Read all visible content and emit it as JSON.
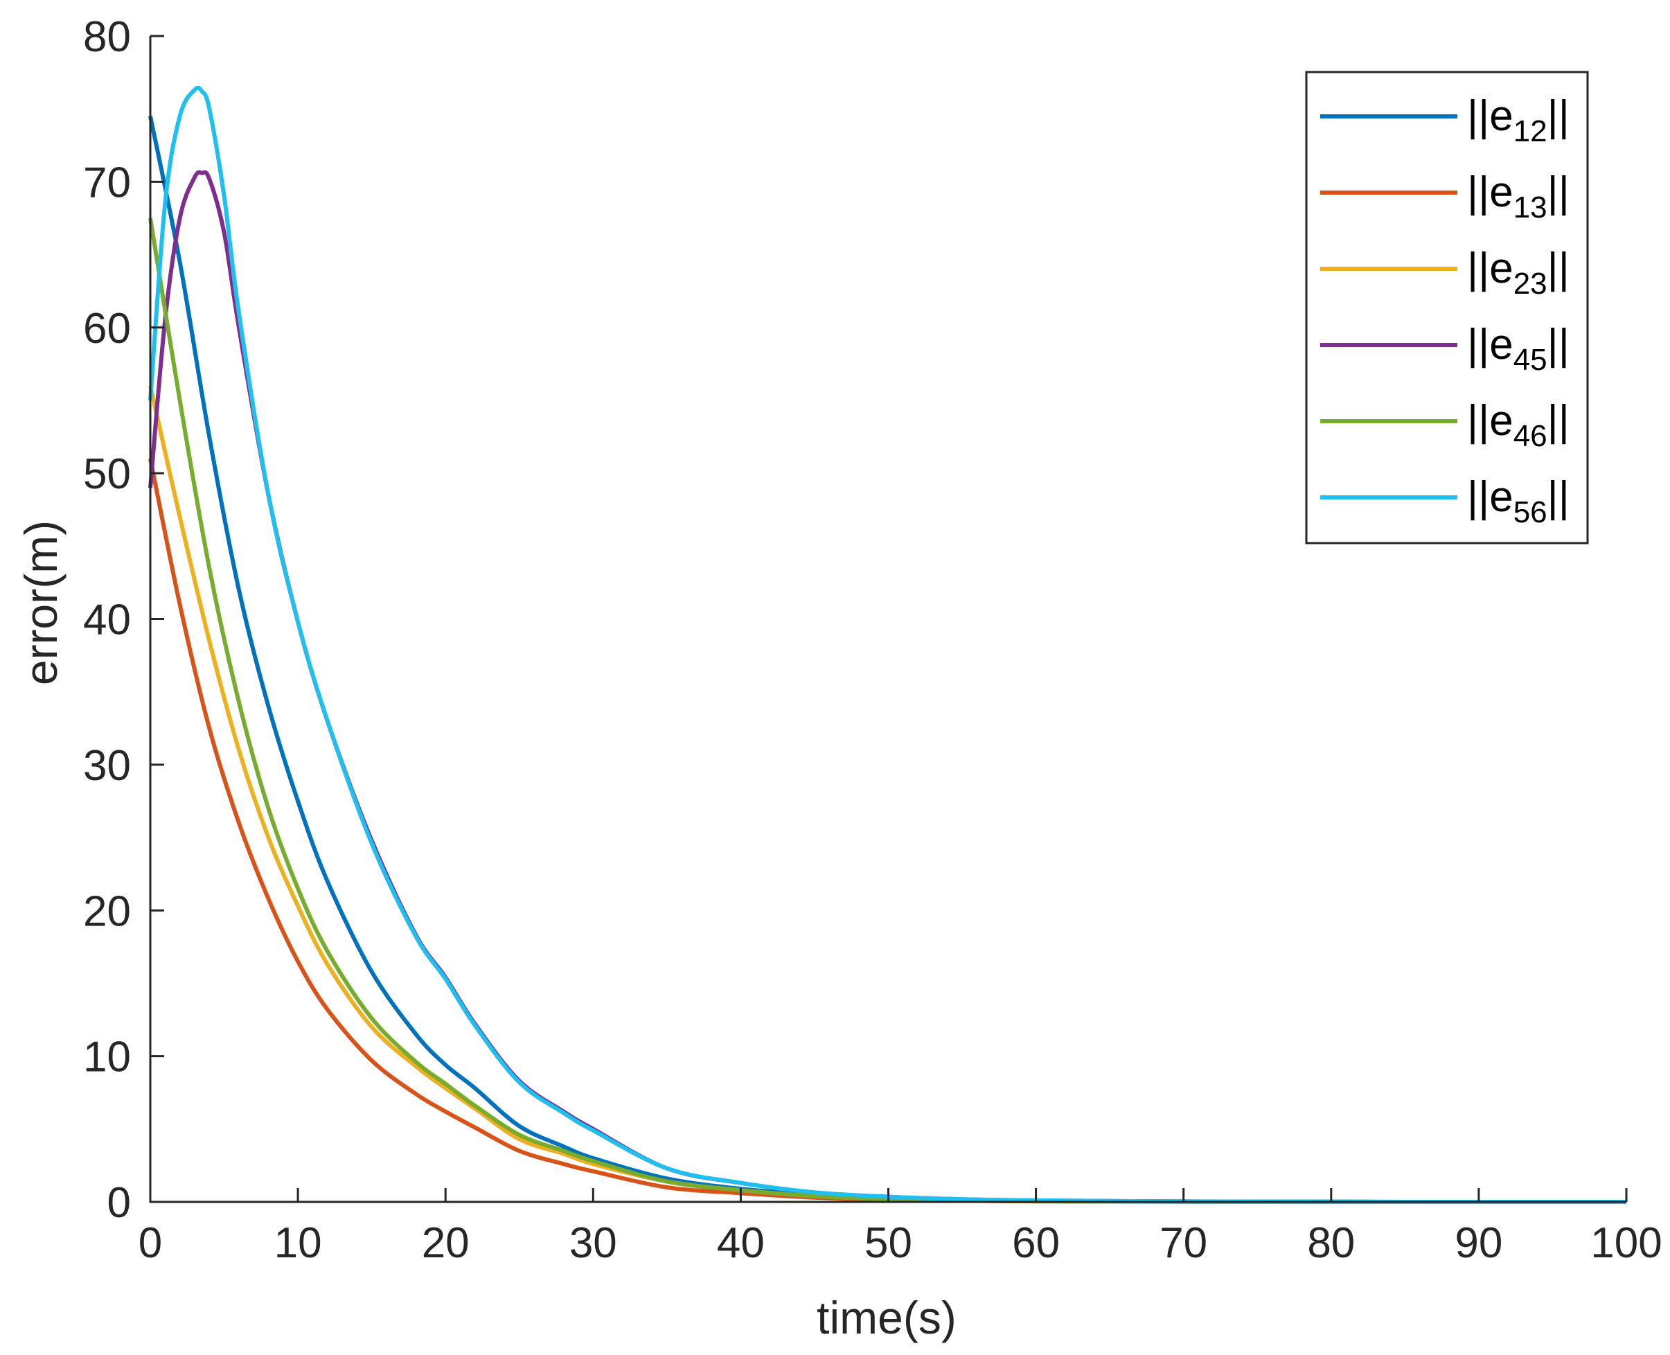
{
  "chart_data": {
    "type": "line",
    "title": "",
    "xlabel": "time(s)",
    "ylabel": "error(m)",
    "xlim": [
      0,
      100
    ],
    "ylim": [
      0,
      80
    ],
    "xticks": [
      0,
      10,
      20,
      30,
      40,
      50,
      60,
      70,
      80,
      90,
      100
    ],
    "yticks": [
      0,
      10,
      20,
      30,
      40,
      50,
      60,
      70,
      80
    ],
    "xtick_labels": [
      "0",
      "10",
      "20",
      "30",
      "40",
      "50",
      "60",
      "70",
      "80",
      "90",
      "100"
    ],
    "ytick_labels": [
      "0",
      "10",
      "20",
      "30",
      "40",
      "50",
      "60",
      "70",
      "80"
    ],
    "grid": false,
    "legend_position": "top-right",
    "series": [
      {
        "name": "||e12||",
        "label_main": "||e",
        "label_sub": "12",
        "label_end": "||",
        "color": "#0072BD",
        "x": [
          0,
          2,
          4,
          6,
          8,
          10,
          12,
          15,
          18,
          20,
          22,
          25,
          28,
          30,
          35,
          40,
          45,
          50,
          55,
          60,
          70,
          80,
          90,
          100
        ],
        "y": [
          74.5,
          64.5,
          52.5,
          42,
          34,
          27.5,
          22,
          15.8,
          11.5,
          9.4,
          7.8,
          5.2,
          3.8,
          3.0,
          1.6,
          0.9,
          0.5,
          0.3,
          0.15,
          0.08,
          0.03,
          0.01,
          0,
          0
        ]
      },
      {
        "name": "||e13||",
        "label_main": "||e",
        "label_sub": "13",
        "label_end": "||",
        "color": "#D95319",
        "x": [
          0,
          2,
          4,
          6,
          8,
          10,
          12,
          15,
          18,
          20,
          22,
          25,
          28,
          30,
          35,
          40,
          45,
          50,
          55,
          60,
          70,
          80,
          90,
          100
        ],
        "y": [
          51,
          41,
          32.5,
          26,
          20.8,
          16.5,
          13.2,
          9.7,
          7.4,
          6.2,
          5.1,
          3.5,
          2.6,
          2.1,
          1.0,
          0.6,
          0.3,
          0.15,
          0.08,
          0.04,
          0.01,
          0,
          0,
          0
        ]
      },
      {
        "name": "||e23||",
        "label_main": "||e",
        "label_sub": "23",
        "label_end": "||",
        "color": "#EDB120",
        "x": [
          0,
          2,
          4,
          6,
          8,
          10,
          12,
          15,
          18,
          20,
          22,
          25,
          28,
          30,
          35,
          40,
          45,
          50,
          55,
          60,
          70,
          80,
          90,
          100
        ],
        "y": [
          56,
          47,
          38.5,
          31,
          25,
          20.3,
          16.3,
          12,
          9.3,
          7.8,
          6.4,
          4.3,
          3.3,
          2.6,
          1.4,
          0.8,
          0.4,
          0.2,
          0.1,
          0.05,
          0.02,
          0,
          0,
          0
        ]
      },
      {
        "name": "||e45||",
        "label_main": "||e",
        "label_sub": "45",
        "label_end": "||",
        "color": "#7E2F8E",
        "x": [
          0,
          1,
          2,
          3,
          3.5,
          4,
          5,
          6,
          8,
          10,
          12,
          15,
          18,
          20,
          22,
          25,
          28,
          30,
          35,
          40,
          45,
          50,
          55,
          60,
          70,
          80,
          90,
          100
        ],
        "y": [
          49,
          60.5,
          67.5,
          70.3,
          70.6,
          70.2,
          66.5,
          60,
          48.5,
          39.8,
          33,
          24.8,
          18.3,
          15.4,
          12.2,
          8.3,
          6.2,
          5.0,
          2.3,
          1.3,
          0.65,
          0.35,
          0.18,
          0.1,
          0.03,
          0.01,
          0,
          0
        ]
      },
      {
        "name": "||e46||",
        "label_main": "||e",
        "label_sub": "46",
        "label_end": "||",
        "color": "#77AC30",
        "x": [
          0,
          2,
          4,
          6,
          8,
          10,
          12,
          15,
          18,
          20,
          22,
          25,
          28,
          30,
          35,
          40,
          45,
          50,
          55,
          60,
          70,
          80,
          90,
          100
        ],
        "y": [
          67.5,
          55,
          43.5,
          34.3,
          27,
          21.5,
          17.2,
          12.6,
          9.6,
          8.1,
          6.6,
          4.6,
          3.5,
          2.8,
          1.4,
          0.8,
          0.4,
          0.2,
          0.1,
          0.05,
          0.02,
          0,
          0,
          0
        ]
      },
      {
        "name": "||e56||",
        "label_main": "||e",
        "label_sub": "56",
        "label_end": "||",
        "color": "#1FBFEF",
        "x": [
          0,
          1,
          2,
          3,
          3.5,
          4,
          5,
          6,
          8,
          10,
          12,
          15,
          18,
          20,
          22,
          25,
          28,
          30,
          35,
          40,
          45,
          50,
          55,
          60,
          70,
          80,
          90,
          100
        ],
        "y": [
          55,
          68.5,
          74.5,
          76.3,
          76.2,
          75,
          69,
          61,
          48.5,
          39.8,
          33,
          24.6,
          18.2,
          15.3,
          12.1,
          8.2,
          6.1,
          4.9,
          2.3,
          1.3,
          0.65,
          0.35,
          0.18,
          0.1,
          0.03,
          0.01,
          0,
          0
        ]
      }
    ]
  }
}
